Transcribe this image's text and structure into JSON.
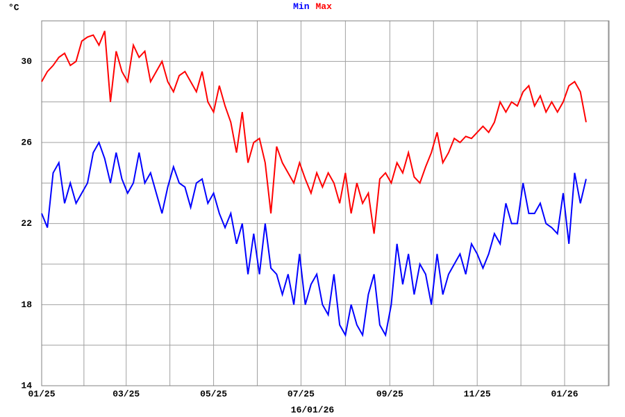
{
  "chart_data": {
    "type": "line",
    "title_series_note": null,
    "y_label": "°C",
    "x_label": "16/01/26",
    "x": [
      0,
      4,
      8,
      12,
      16,
      20,
      24,
      28,
      32,
      36,
      40,
      44,
      48,
      52,
      56,
      60,
      64,
      68,
      72,
      76,
      80,
      84,
      88,
      92,
      96,
      100,
      104,
      108,
      112,
      116,
      120,
      124,
      128,
      132,
      136,
      140,
      144,
      148,
      152,
      156,
      160,
      164,
      168,
      172,
      176,
      180,
      184,
      188,
      192,
      196,
      200,
      204,
      208,
      212,
      216,
      220,
      224,
      228,
      232,
      236,
      240,
      244,
      248,
      252,
      256,
      260,
      264,
      268,
      272,
      276,
      280,
      284,
      288,
      292,
      296,
      300,
      304,
      308,
      312,
      316,
      320,
      324,
      328,
      332,
      336,
      340,
      344,
      348,
      352,
      356,
      360,
      364,
      368,
      372,
      376,
      380
    ],
    "series": [
      {
        "name": "Min",
        "color": "#0000ff",
        "values": [
          22.5,
          21.8,
          24.5,
          25.0,
          23.0,
          24.0,
          23.0,
          23.5,
          24.0,
          25.5,
          26.0,
          25.2,
          24.0,
          25.5,
          24.2,
          23.5,
          24.0,
          25.5,
          24.0,
          24.5,
          23.5,
          22.5,
          23.8,
          24.8,
          24.0,
          23.8,
          22.8,
          24.0,
          24.2,
          23.0,
          23.5,
          22.5,
          21.8,
          22.5,
          21.0,
          22.0,
          19.5,
          21.5,
          19.5,
          22.0,
          19.8,
          19.5,
          18.5,
          19.5,
          18.0,
          20.5,
          18.0,
          19.0,
          19.5,
          18.0,
          17.5,
          19.5,
          17.0,
          16.5,
          18.0,
          17.0,
          16.5,
          18.5,
          19.5,
          17.0,
          16.5,
          18.0,
          21.0,
          19.0,
          20.5,
          18.5,
          20.0,
          19.5,
          18.0,
          20.5,
          18.5,
          19.5,
          20.0,
          20.5,
          19.5,
          21.0,
          20.5,
          19.8,
          20.5,
          21.5,
          21.0,
          23.0,
          22.0,
          22.0,
          24.0,
          22.5,
          22.5,
          23.0,
          22.0,
          21.8,
          21.5,
          23.5,
          21.0,
          24.5,
          23.0,
          24.2
        ]
      },
      {
        "name": "Max",
        "color": "#ff0000",
        "values": [
          29.0,
          29.5,
          29.8,
          30.2,
          30.4,
          29.8,
          30.0,
          31.0,
          31.2,
          31.3,
          30.8,
          31.5,
          28.0,
          30.5,
          29.5,
          29.0,
          30.8,
          30.2,
          30.5,
          29.0,
          29.5,
          30.0,
          29.0,
          28.5,
          29.3,
          29.5,
          29.0,
          28.5,
          29.5,
          28.0,
          27.5,
          28.8,
          27.8,
          27.0,
          25.5,
          27.5,
          25.0,
          26.0,
          26.2,
          25.0,
          22.5,
          25.8,
          25.0,
          24.5,
          24.0,
          25.0,
          24.2,
          23.5,
          24.5,
          23.8,
          24.5,
          24.0,
          23.0,
          24.5,
          22.5,
          24.0,
          23.0,
          23.5,
          21.5,
          24.2,
          24.5,
          24.0,
          25.0,
          24.5,
          25.5,
          24.3,
          24.0,
          24.8,
          25.5,
          26.5,
          25.0,
          25.5,
          26.2,
          26.0,
          26.3,
          26.2,
          26.5,
          26.8,
          26.5,
          27.0,
          28.0,
          27.5,
          28.0,
          27.8,
          28.5,
          28.8,
          27.8,
          28.3,
          27.5,
          28.0,
          27.5,
          28.0,
          28.8,
          29.0,
          28.5,
          27.0
        ]
      }
    ],
    "xlim": [
      0,
      396
    ],
    "xticks": [
      {
        "value": 0,
        "label": "01/25"
      },
      {
        "value": 59,
        "label": "03/25"
      },
      {
        "value": 120,
        "label": "05/25"
      },
      {
        "value": 181,
        "label": "07/25"
      },
      {
        "value": 243,
        "label": "09/25"
      },
      {
        "value": 304,
        "label": "11/25"
      },
      {
        "value": 365,
        "label": "01/26"
      }
    ],
    "ylim": [
      14,
      32
    ],
    "yticks": [
      14,
      18,
      22,
      26,
      30
    ],
    "grid": true
  }
}
